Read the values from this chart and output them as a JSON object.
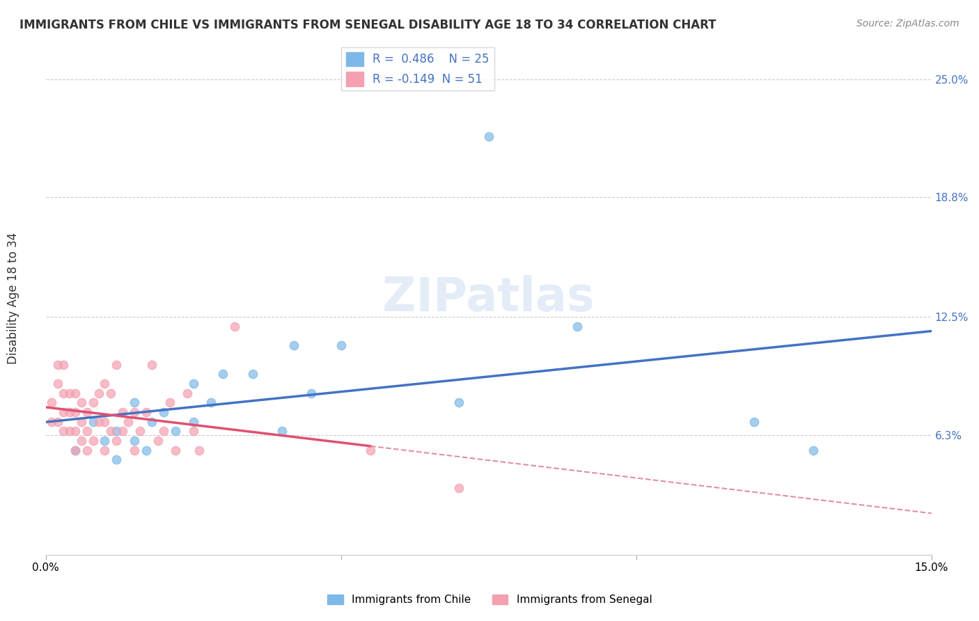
{
  "title": "IMMIGRANTS FROM CHILE VS IMMIGRANTS FROM SENEGAL DISABILITY AGE 18 TO 34 CORRELATION CHART",
  "source": "Source: ZipAtlas.com",
  "xlabel": "",
  "ylabel": "Disability Age 18 to 34",
  "xlim": [
    0.0,
    0.15
  ],
  "ylim": [
    0.0,
    0.27
  ],
  "yticks": [
    0.0,
    0.063,
    0.125,
    0.188,
    0.25
  ],
  "ytick_labels": [
    "",
    "6.3%",
    "12.5%",
    "18.8%",
    "25.0%"
  ],
  "xticks": [
    0.0,
    0.05,
    0.1,
    0.15
  ],
  "xtick_labels": [
    "0.0%",
    "",
    "",
    "15.0%"
  ],
  "grid_color": "#cccccc",
  "background_color": "#ffffff",
  "watermark": "ZIPatlas",
  "chile_color": "#7EB8E8",
  "senegal_color": "#F4A0B0",
  "chile_R": 0.486,
  "chile_N": 25,
  "senegal_R": -0.149,
  "senegal_N": 51,
  "chile_line_color": "#4472C4",
  "senegal_line_color": "#E05070",
  "senegal_dash_color": "#E090A0",
  "chile_scatter_x": [
    0.005,
    0.008,
    0.01,
    0.012,
    0.012,
    0.015,
    0.015,
    0.017,
    0.018,
    0.02,
    0.022,
    0.025,
    0.025,
    0.028,
    0.03,
    0.035,
    0.04,
    0.042,
    0.045,
    0.05,
    0.07,
    0.075,
    0.09,
    0.12,
    0.13
  ],
  "chile_scatter_y": [
    0.055,
    0.07,
    0.06,
    0.065,
    0.05,
    0.08,
    0.06,
    0.055,
    0.07,
    0.075,
    0.065,
    0.09,
    0.07,
    0.08,
    0.095,
    0.095,
    0.065,
    0.11,
    0.085,
    0.11,
    0.08,
    0.22,
    0.12,
    0.07,
    0.055
  ],
  "senegal_scatter_x": [
    0.001,
    0.001,
    0.002,
    0.002,
    0.002,
    0.003,
    0.003,
    0.003,
    0.003,
    0.004,
    0.004,
    0.004,
    0.005,
    0.005,
    0.005,
    0.005,
    0.006,
    0.006,
    0.006,
    0.007,
    0.007,
    0.007,
    0.008,
    0.008,
    0.009,
    0.009,
    0.01,
    0.01,
    0.01,
    0.011,
    0.011,
    0.012,
    0.012,
    0.013,
    0.013,
    0.014,
    0.015,
    0.015,
    0.016,
    0.017,
    0.018,
    0.019,
    0.02,
    0.021,
    0.022,
    0.024,
    0.025,
    0.026,
    0.032,
    0.055,
    0.07
  ],
  "senegal_scatter_y": [
    0.07,
    0.08,
    0.07,
    0.09,
    0.1,
    0.065,
    0.075,
    0.085,
    0.1,
    0.065,
    0.075,
    0.085,
    0.055,
    0.065,
    0.075,
    0.085,
    0.06,
    0.07,
    0.08,
    0.055,
    0.065,
    0.075,
    0.06,
    0.08,
    0.07,
    0.085,
    0.055,
    0.07,
    0.09,
    0.065,
    0.085,
    0.06,
    0.1,
    0.065,
    0.075,
    0.07,
    0.055,
    0.075,
    0.065,
    0.075,
    0.1,
    0.06,
    0.065,
    0.08,
    0.055,
    0.085,
    0.065,
    0.055,
    0.12,
    0.055,
    0.035
  ]
}
